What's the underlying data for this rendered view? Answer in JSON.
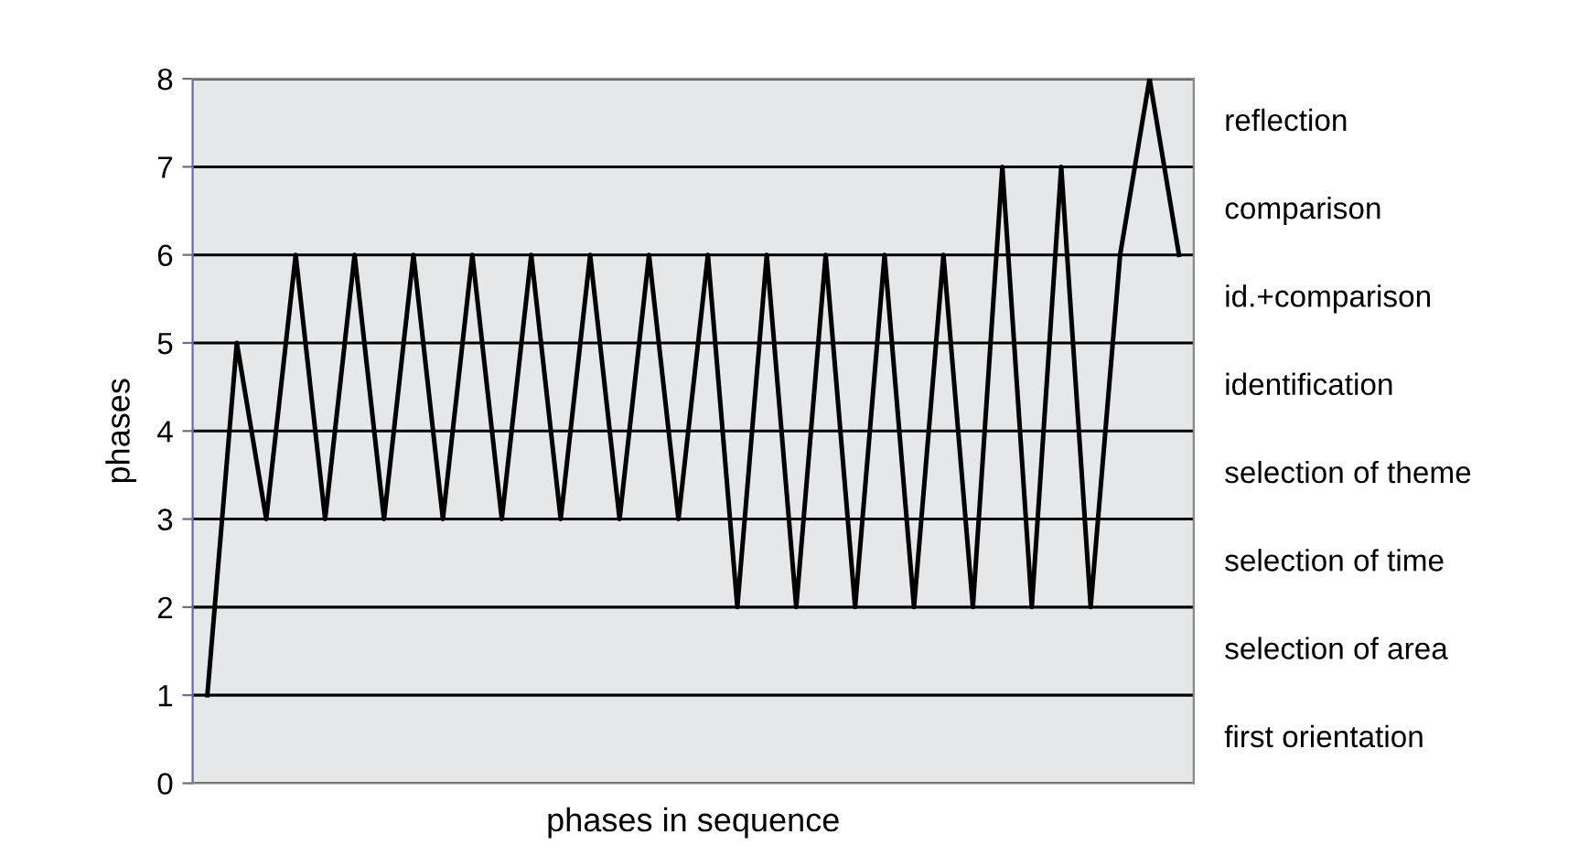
{
  "chart_data": {
    "type": "line",
    "xlabel": "phases in sequence",
    "ylabel": "phases",
    "categories": [
      null,
      null,
      null,
      null,
      null,
      null,
      null,
      null,
      null,
      null,
      null,
      null,
      null,
      null,
      null,
      null,
      null,
      null,
      null,
      null,
      null,
      null,
      null,
      null,
      null,
      null,
      null,
      null,
      null,
      null,
      null,
      null,
      null,
      null
    ],
    "series": [
      {
        "color": "#000000",
        "values": [
          1,
          5,
          3,
          6,
          3,
          6,
          3,
          6,
          3,
          6,
          3,
          6,
          3,
          6,
          3,
          6,
          3,
          6,
          2,
          6,
          2,
          6,
          2,
          6,
          2,
          6,
          2,
          7,
          2,
          7,
          2,
          6,
          8,
          6
        ]
      }
    ],
    "ylim": [
      0,
      8
    ],
    "yticks": [
      0,
      1,
      2,
      3,
      4,
      5,
      6,
      7,
      8
    ],
    "bands": [
      {
        "axis": "y",
        "from": 0,
        "to": 1,
        "label": "first orientation",
        "color": "#e6e7e8"
      },
      {
        "axis": "y",
        "from": 1,
        "to": 2,
        "label": "selection of area",
        "color": "#e6e7e8"
      },
      {
        "axis": "y",
        "from": 2,
        "to": 3,
        "label": "selection of time",
        "color": "#e6e7e8"
      },
      {
        "axis": "y",
        "from": 3,
        "to": 4,
        "label": "selection of theme",
        "color": "#e6e7e8"
      },
      {
        "axis": "y",
        "from": 4,
        "to": 5,
        "label": "identification",
        "color": "#e6e7e8"
      },
      {
        "axis": "y",
        "from": 5,
        "to": 6,
        "label": "id.+comparison",
        "color": "#e6e7e8"
      },
      {
        "axis": "y",
        "from": 6,
        "to": 7,
        "label": "comparison",
        "color": "#e6e7e8"
      },
      {
        "axis": "y",
        "from": 7,
        "to": 8,
        "label": "reflection",
        "color": "#e6e7e8"
      }
    ],
    "grid": "y",
    "marker": "none",
    "line_style": "solid",
    "legend": false
  }
}
